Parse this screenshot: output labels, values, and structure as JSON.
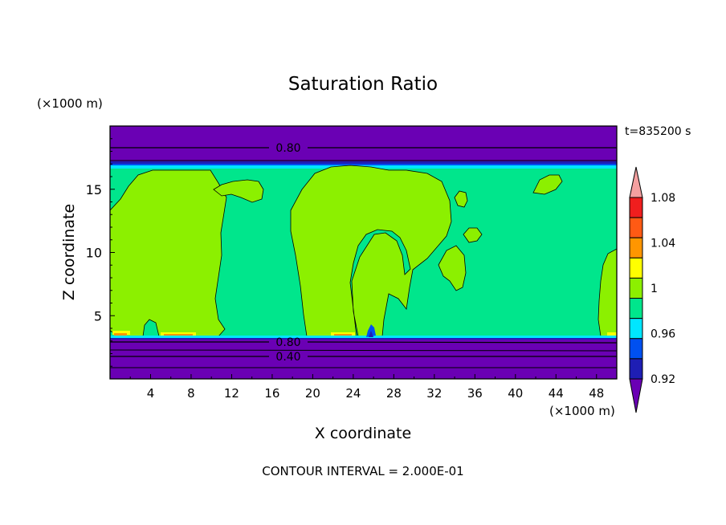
{
  "chart_data": {
    "type": "heatmap",
    "title": "Saturation Ratio",
    "time_label": "t=835200 s",
    "xlabel": "X coordinate",
    "ylabel": "Z coordinate",
    "x_unit": "(×1000 m)",
    "y_unit": "(×1000 m)",
    "xlim": [
      0,
      50
    ],
    "ylim": [
      0,
      20
    ],
    "x_ticks": [
      4,
      8,
      12,
      16,
      20,
      24,
      28,
      32,
      36,
      40,
      44,
      48
    ],
    "y_ticks": [
      5,
      10,
      15
    ],
    "footer": "CONTOUR INTERVAL = 2.000E-01",
    "colorbar": {
      "tick_labels": [
        "0.92",
        "0.96",
        "1",
        "1.04",
        "1.08"
      ],
      "levels": [
        0.9,
        0.92,
        0.94,
        0.96,
        0.98,
        1.0,
        1.02,
        1.04,
        1.06,
        1.08,
        1.1
      ],
      "colors": [
        "#6a00b4",
        "#1e1eb4",
        "#0050f0",
        "#00e6ff",
        "#00e68c",
        "#8cf000",
        "#ffff00",
        "#ff9600",
        "#ff5a14",
        "#f01e1e",
        "#f4a0a0"
      ]
    },
    "contour_lines": [
      {
        "label": "0.80",
        "z": 18.2,
        "x": 18.8
      },
      {
        "label": "0.80",
        "z": 3.0,
        "x": 17.6
      },
      {
        "label": "0.40",
        "z": 1.9,
        "x": 17.6
      }
    ],
    "colors": {
      "low_band": "#6a00b4",
      "saturated": "#00e68c",
      "supersaturated": "#8cf000",
      "deep_blue": "#1e1eb4",
      "cyan": "#00e6ff"
    }
  }
}
